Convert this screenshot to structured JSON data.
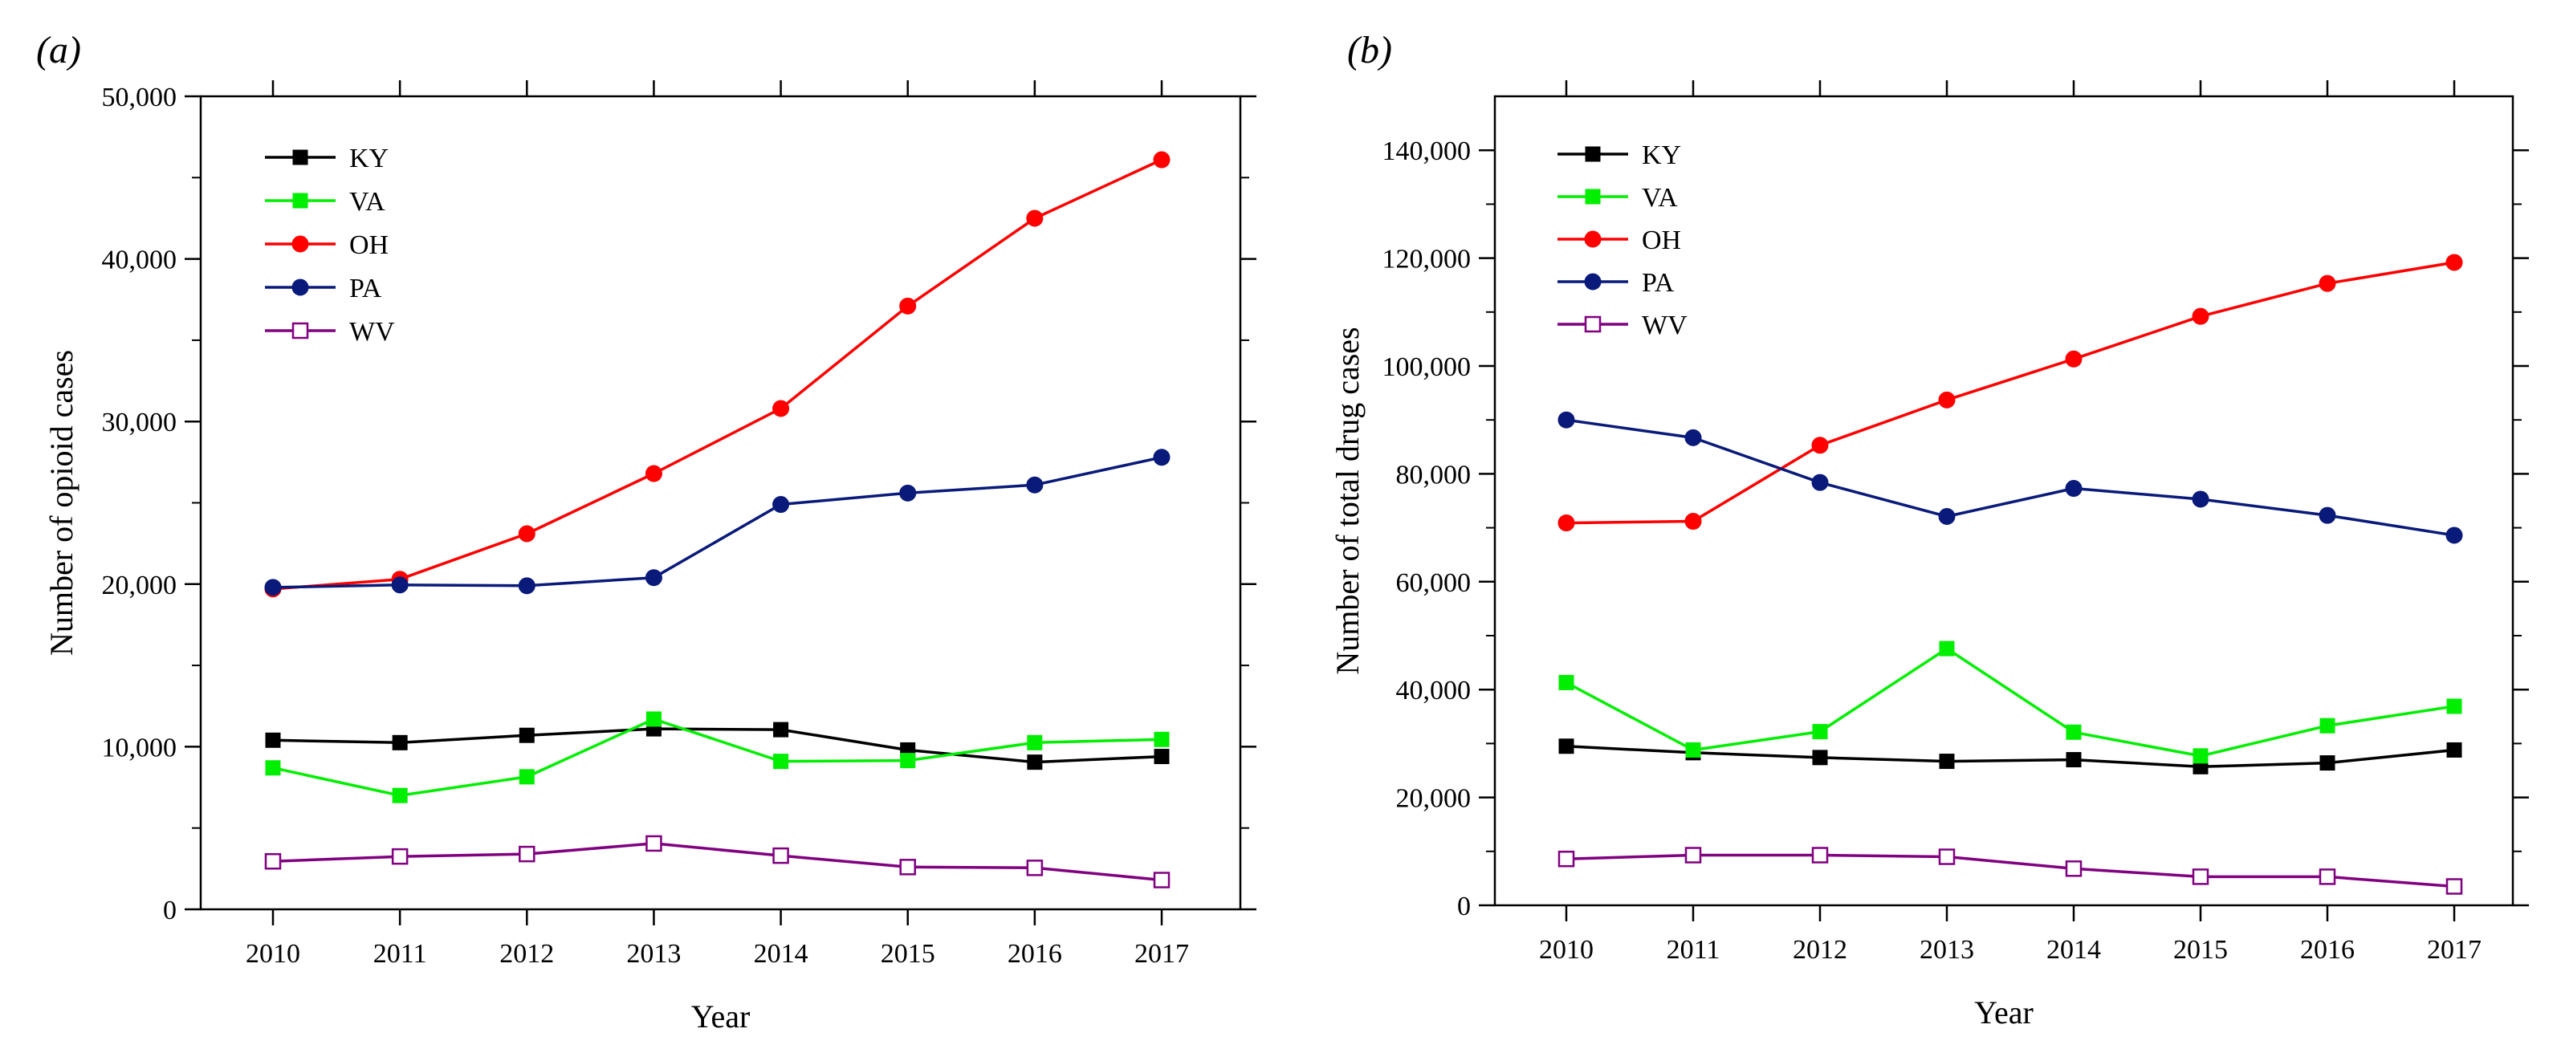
{
  "chart_data": [
    {
      "type": "line",
      "panel": "(a)",
      "xlabel": "Year",
      "ylabel": "Number of opioid cases",
      "x": [
        2010,
        2011,
        2012,
        2013,
        2014,
        2015,
        2016,
        2017
      ],
      "ylim": [
        0,
        50000
      ],
      "yticks": [
        0,
        10000,
        20000,
        30000,
        40000,
        50000
      ],
      "ytick_labels": [
        "0",
        "10,000",
        "20,000",
        "30,000",
        "40,000",
        "50,000"
      ],
      "legend_position": "top-left",
      "grid": false,
      "series": [
        {
          "name": "KY",
          "color": "#000000",
          "marker": "square-filled",
          "values": [
            10400,
            10250,
            10700,
            11100,
            11050,
            9800,
            9050,
            9400
          ]
        },
        {
          "name": "VA",
          "color": "#00ee00",
          "marker": "square-filled",
          "values": [
            8700,
            7000,
            8150,
            11700,
            9100,
            9150,
            10250,
            10450
          ]
        },
        {
          "name": "OH",
          "color": "#ff0000",
          "marker": "circle-filled",
          "values": [
            19700,
            20300,
            23100,
            26800,
            30800,
            37100,
            42500,
            46100
          ]
        },
        {
          "name": "PA",
          "color": "#0a1a7a",
          "marker": "circle-filled",
          "values": [
            19800,
            19950,
            19900,
            20400,
            24900,
            25600,
            26100,
            27800
          ]
        },
        {
          "name": "WV",
          "color": "#800080",
          "marker": "square-open",
          "values": [
            2950,
            3250,
            3400,
            4050,
            3300,
            2600,
            2550,
            1800
          ]
        }
      ]
    },
    {
      "type": "line",
      "panel": "(b)",
      "xlabel": "Year",
      "ylabel": "Number of total drug cases",
      "x": [
        2010,
        2011,
        2012,
        2013,
        2014,
        2015,
        2016,
        2017
      ],
      "ylim": [
        0,
        150000
      ],
      "yticks": [
        0,
        20000,
        40000,
        60000,
        80000,
        100000,
        120000,
        140000
      ],
      "ytick_labels": [
        "0",
        "20,000",
        "40,000",
        "60,000",
        "80,000",
        "100,000",
        "120,000",
        "140,000"
      ],
      "legend_position": "top-left",
      "grid": false,
      "series": [
        {
          "name": "KY",
          "color": "#000000",
          "marker": "square-filled",
          "values": [
            29500,
            28300,
            27400,
            26700,
            27000,
            25700,
            26400,
            28800
          ]
        },
        {
          "name": "VA",
          "color": "#00ee00",
          "marker": "square-filled",
          "values": [
            41300,
            28800,
            32200,
            47600,
            32100,
            27700,
            33300,
            36900
          ]
        },
        {
          "name": "OH",
          "color": "#ff0000",
          "marker": "circle-filled",
          "values": [
            70900,
            71200,
            85300,
            93700,
            101300,
            109200,
            115300,
            119200
          ]
        },
        {
          "name": "PA",
          "color": "#0a1a7a",
          "marker": "circle-filled",
          "values": [
            90000,
            86700,
            78400,
            72100,
            77300,
            75300,
            72300,
            68600
          ]
        },
        {
          "name": "WV",
          "color": "#800080",
          "marker": "square-open",
          "values": [
            8600,
            9300,
            9300,
            9000,
            6800,
            5300,
            5300,
            3500
          ]
        }
      ]
    }
  ]
}
